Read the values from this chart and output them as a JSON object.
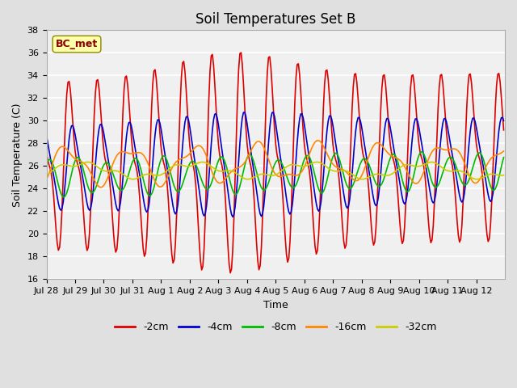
{
  "title": "Soil Temperatures Set B",
  "xlabel": "Time",
  "ylabel": "Soil Temperature (C)",
  "ylim": [
    16,
    38
  ],
  "yticks": [
    16,
    18,
    20,
    22,
    24,
    26,
    28,
    30,
    32,
    34,
    36,
    38
  ],
  "legend_label": "BC_met",
  "series_names": [
    "-2cm",
    "-4cm",
    "-8cm",
    "-16cm",
    "-32cm"
  ],
  "series_colors": [
    "#dd0000",
    "#0000cc",
    "#00bb00",
    "#ff8800",
    "#cccc00"
  ],
  "series_linewidths": [
    1.2,
    1.2,
    1.2,
    1.2,
    1.2
  ],
  "xtick_labels": [
    "Jul 28",
    "Jul 29",
    "Jul 30",
    "Jul 31",
    "Aug 1",
    "Aug 2",
    "Aug 3",
    "Aug 4",
    "Aug 5",
    "Aug 6",
    "Aug 7",
    "Aug 8",
    "Aug 9",
    "Aug 10",
    "Aug 11",
    "Aug 12"
  ],
  "n_days": 16,
  "background_color": "#e0e0e0",
  "plot_background": "#f0f0f0",
  "title_fontsize": 12,
  "axis_label_fontsize": 9,
  "tick_fontsize": 8,
  "legend_fontsize": 9,
  "bc_met_color": "#8B0000",
  "bc_met_bg": "#ffffaa",
  "bc_met_edge": "#888800"
}
